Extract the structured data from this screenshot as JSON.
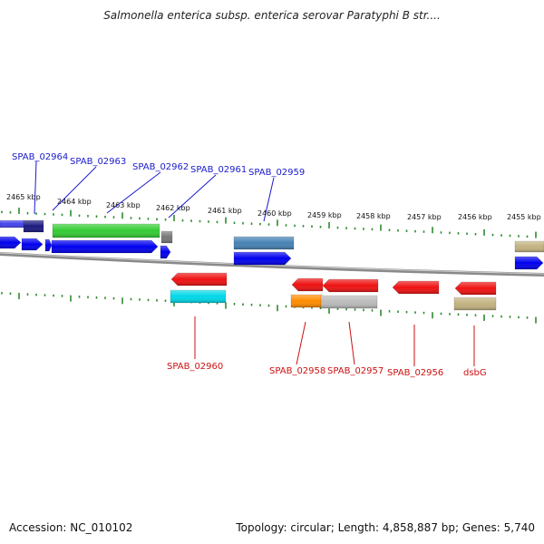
{
  "title": "Salmonella enterica subsp. enterica serovar Paratyphi B str....",
  "footer": {
    "accession": "Accession: NC_010102",
    "summary": "Topology: circular; Length: 4,858,887 bp; Genes: 5,740"
  },
  "colors": {
    "forward_label": "#1a1acc",
    "reverse_label": "#cc1111",
    "tick": "#2e8b2e",
    "backbone": "#8a8a8a"
  },
  "ruler": {
    "labels": [
      "2465 kbp",
      "2464 kbp",
      "2463 kbp",
      "2462 kbp",
      "2461 kbp",
      "2460 kbp",
      "2459 kbp",
      "2458 kbp",
      "2457 kbp",
      "2456 kbp",
      "2455 kbp"
    ]
  },
  "gene_labels": {
    "forward": [
      "SPAB_02964",
      "SPAB_02963",
      "SPAB_02962",
      "SPAB_02961",
      "SPAB_02959"
    ],
    "reverse": [
      "SPAB_02960",
      "SPAB_02958",
      "SPAB_02957",
      "SPAB_02956",
      "dsbG"
    ]
  },
  "features": {
    "colors": [
      "#4444ee",
      "#1a1a80",
      "#33cc33",
      "#777777",
      "#4682b4",
      "#c2b280",
      "#0000ee",
      "#ee1111",
      "#00d8e8",
      "#ff8c00",
      "#bbbbbb"
    ]
  }
}
